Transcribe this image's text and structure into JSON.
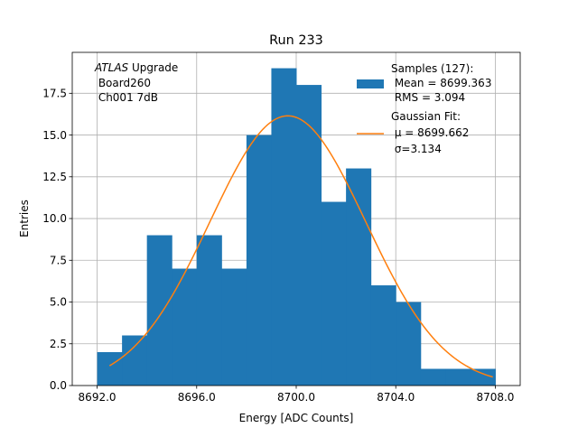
{
  "chart_data": {
    "type": "bar",
    "title": "Run 233",
    "xlabel": "Energy [ADC Counts]",
    "ylabel": "Entries",
    "xlim": [
      8691.0,
      8709.0
    ],
    "ylim": [
      0,
      19.95
    ],
    "xticks": [
      "8692.0",
      "8696.0",
      "8700.0",
      "8704.0",
      "8708.0"
    ],
    "xtick_values": [
      8692,
      8696,
      8700,
      8704,
      8708
    ],
    "yticks": [
      "0.0",
      "2.5",
      "5.0",
      "7.5",
      "10.0",
      "12.5",
      "15.0",
      "17.5"
    ],
    "ytick_values": [
      0,
      2.5,
      5,
      7.5,
      10,
      12.5,
      15,
      17.5
    ],
    "grid": true,
    "histogram": {
      "bin_edges": [
        8692,
        8693,
        8694,
        8695,
        8696,
        8697,
        8698,
        8699,
        8700,
        8701,
        8702,
        8703,
        8704,
        8705,
        8706,
        8707,
        8708
      ],
      "counts": [
        2,
        3,
        9,
        7,
        9,
        7,
        15,
        19,
        18,
        11,
        13,
        6,
        5,
        1,
        1,
        1
      ],
      "color": "#1f77b4"
    },
    "fit": {
      "type": "gaussian",
      "mu": 8699.662,
      "sigma": 3.134,
      "peak": 16.15,
      "x_range": [
        8692.5,
        8707.9
      ],
      "color": "#ff7f0e"
    },
    "annotation": {
      "line1_italic": "ATLAS",
      "line1_rest": " Upgrade",
      "line2": " Board260",
      "line3": " Ch001 7dB"
    },
    "legend": {
      "placement": "top-right",
      "samples": {
        "line1": "Samples (127):",
        "line2": " Mean = 8699.363",
        "line3": " RMS = 3.094"
      },
      "fit": {
        "line1": "Gaussian Fit:",
        "line2": " μ = 8699.662",
        "line3": " σ=3.134"
      }
    }
  }
}
